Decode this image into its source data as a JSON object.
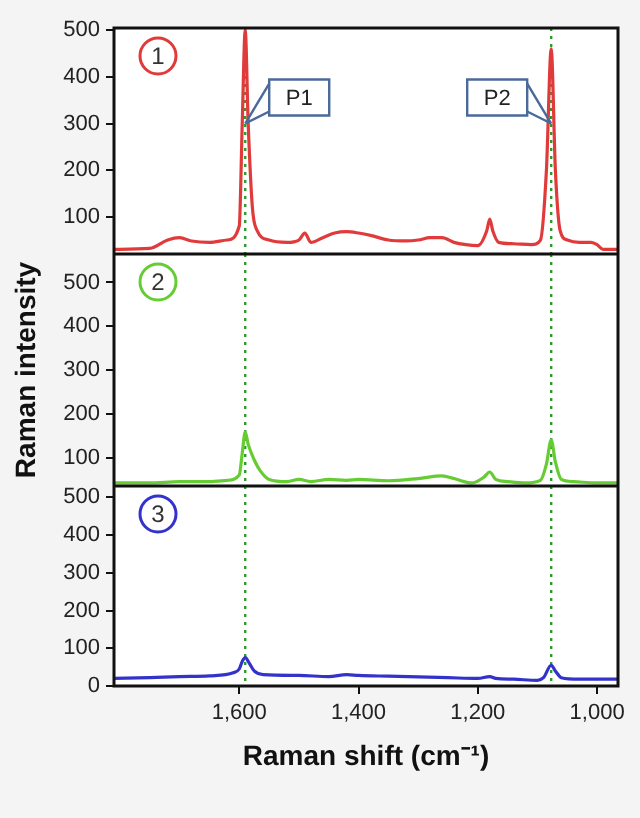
{
  "chart_data": [
    {
      "type": "line",
      "x": [
        1810,
        1750,
        1720,
        1700,
        1680,
        1650,
        1620,
        1600,
        1595,
        1590,
        1585,
        1578,
        1570,
        1550,
        1520,
        1500,
        1490,
        1480,
        1460,
        1440,
        1420,
        1400,
        1380,
        1350,
        1320,
        1300,
        1280,
        1260,
        1240,
        1220,
        1200,
        1185,
        1180,
        1175,
        1165,
        1140,
        1110,
        1095,
        1085,
        1077,
        1070,
        1062,
        1050,
        1030,
        1010,
        1000,
        990,
        965
      ],
      "series": [
        {
          "color": "#e03a3a",
          "values": [
            30,
            32,
            50,
            55,
            48,
            45,
            50,
            80,
            300,
            500,
            300,
            120,
            70,
            50,
            45,
            50,
            65,
            45,
            55,
            65,
            68,
            65,
            60,
            50,
            48,
            50,
            55,
            55,
            45,
            40,
            38,
            70,
            95,
            70,
            45,
            42,
            40,
            50,
            200,
            460,
            200,
            70,
            50,
            45,
            45,
            40,
            30,
            30
          ]
        }
      ],
      "xlim": [
        1810,
        965
      ],
      "ylim": [
        20,
        505
      ],
      "yticks": [
        100,
        200,
        300,
        400,
        500
      ],
      "tick_labels": "y",
      "legend": false,
      "ref_lines": [
        {
          "axis": "x",
          "value": 1590,
          "color": "#2e9a2e",
          "line_style": "dotted"
        },
        {
          "axis": "x",
          "value": 1077,
          "color": "#2e9a2e",
          "line_style": "dotted"
        }
      ],
      "annotations": [
        "1",
        {
          "text": "P1",
          "x": 1590,
          "y": 300
        },
        {
          "text": "P2",
          "x": 1077,
          "y": 300
        }
      ]
    },
    {
      "type": "line",
      "x": [
        1810,
        1750,
        1700,
        1650,
        1620,
        1600,
        1595,
        1590,
        1585,
        1575,
        1565,
        1550,
        1520,
        1500,
        1480,
        1450,
        1420,
        1400,
        1350,
        1300,
        1260,
        1240,
        1210,
        1190,
        1180,
        1170,
        1150,
        1120,
        1095,
        1085,
        1077,
        1070,
        1060,
        1040,
        1000,
        965
      ],
      "series": [
        {
          "color": "#66cc33",
          "values": [
            42,
            42,
            45,
            45,
            48,
            60,
            110,
            158,
            130,
            95,
            70,
            50,
            45,
            50,
            45,
            50,
            48,
            50,
            47,
            52,
            58,
            52,
            42,
            55,
            67,
            50,
            45,
            42,
            48,
            85,
            140,
            90,
            50,
            45,
            42,
            42
          ]
        }
      ],
      "xlim": [
        1810,
        965
      ],
      "ylim": [
        35,
        565
      ],
      "yticks": [
        100,
        200,
        300,
        400,
        500
      ],
      "tick_labels": "y",
      "legend": false,
      "ylabel": "Raman intensity",
      "ref_lines": [
        {
          "axis": "x",
          "value": 1590,
          "color": "#2e9a2e",
          "line_style": "dotted"
        },
        {
          "axis": "x",
          "value": 1077,
          "color": "#2e9a2e",
          "line_style": "dotted"
        }
      ],
      "annotations": [
        "2"
      ]
    },
    {
      "type": "line",
      "x": [
        1810,
        1750,
        1700,
        1650,
        1610,
        1600,
        1595,
        1590,
        1583,
        1575,
        1560,
        1500,
        1450,
        1420,
        1400,
        1350,
        1300,
        1250,
        1200,
        1180,
        1170,
        1140,
        1100,
        1090,
        1077,
        1070,
        1060,
        1030,
        1000,
        965
      ],
      "series": [
        {
          "color": "#3333cc",
          "values": [
            20,
            22,
            25,
            27,
            35,
            45,
            65,
            75,
            60,
            40,
            30,
            28,
            25,
            30,
            28,
            26,
            24,
            22,
            20,
            25,
            20,
            18,
            15,
            22,
            55,
            40,
            22,
            18,
            18,
            18
          ]
        }
      ],
      "xlim": [
        1810,
        965
      ],
      "xticks": [
        {
          "value": 1600,
          "label": "1,600"
        },
        {
          "value": 1400,
          "label": "1,400"
        },
        {
          "value": 1200,
          "label": "1,200"
        },
        {
          "value": 1000,
          "label": "1,000"
        }
      ],
      "ylim": [
        0,
        530
      ],
      "yticks": [
        0,
        100,
        200,
        300,
        400,
        500
      ],
      "legend": false,
      "xlabel": "Raman shift (cm⁻¹)",
      "ref_lines": [
        {
          "axis": "x",
          "value": 1590,
          "color": "#2e9a2e",
          "line_style": "dotted"
        },
        {
          "axis": "x",
          "value": 1077,
          "color": "#2e9a2e",
          "line_style": "dotted"
        }
      ],
      "annotations": [
        "3"
      ]
    }
  ]
}
